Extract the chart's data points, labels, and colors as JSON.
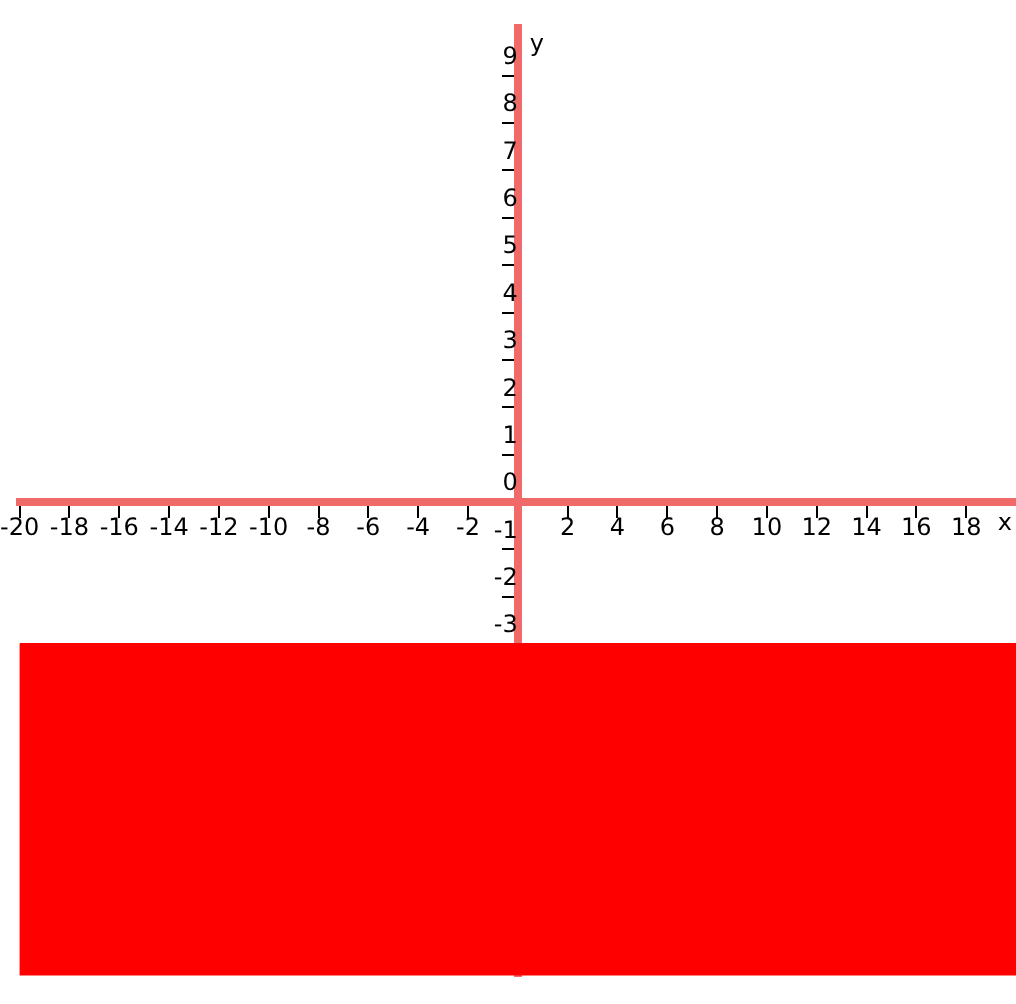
{
  "chart_data": {
    "type": "line",
    "xlabel": "x",
    "ylabel": "y",
    "bands": [
      {
        "axis": "y",
        "from": -10,
        "to": -3,
        "color": "#ff0000"
      }
    ],
    "x": [
      -20,
      20
    ],
    "series": [
      {
        "color": "#ff0000",
        "values": [
          -3,
          -3
        ]
      }
    ],
    "xlim": [
      -20,
      20
    ],
    "ylim": [
      -10,
      10
    ],
    "xticks": [
      -20,
      -18,
      -16,
      -14,
      -12,
      -10,
      -8,
      -6,
      -4,
      -2,
      {
        "value": 0,
        "label": null
      },
      2,
      4,
      6,
      8,
      10,
      12,
      14,
      16,
      18
    ],
    "yticks": [
      -3,
      -2,
      -1,
      0,
      1,
      2,
      3,
      4,
      5,
      6,
      7,
      8,
      9
    ],
    "grid": false,
    "legend": false
  }
}
